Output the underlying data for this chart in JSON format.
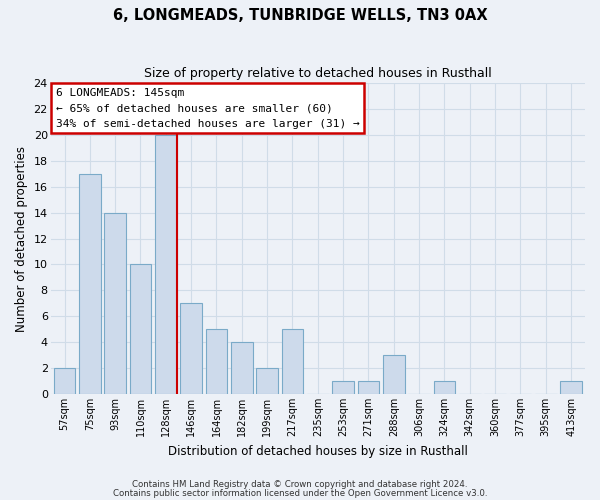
{
  "title": "6, LONGMEADS, TUNBRIDGE WELLS, TN3 0AX",
  "subtitle": "Size of property relative to detached houses in Rusthall",
  "xlabel": "Distribution of detached houses by size in Rusthall",
  "ylabel": "Number of detached properties",
  "bin_labels": [
    "57sqm",
    "75sqm",
    "93sqm",
    "110sqm",
    "128sqm",
    "146sqm",
    "164sqm",
    "182sqm",
    "199sqm",
    "217sqm",
    "235sqm",
    "253sqm",
    "271sqm",
    "288sqm",
    "306sqm",
    "324sqm",
    "342sqm",
    "360sqm",
    "377sqm",
    "395sqm",
    "413sqm"
  ],
  "bar_heights": [
    2,
    17,
    14,
    10,
    20,
    7,
    5,
    4,
    2,
    5,
    0,
    1,
    1,
    3,
    0,
    1,
    0,
    0,
    0,
    0,
    1
  ],
  "bar_color": "#cddaeb",
  "bar_edge_color": "#7aaac8",
  "marker_index": 4,
  "marker_line_color": "#cc0000",
  "ylim": [
    0,
    24
  ],
  "yticks": [
    0,
    2,
    4,
    6,
    8,
    10,
    12,
    14,
    16,
    18,
    20,
    22,
    24
  ],
  "annotation_title": "6 LONGMEADS: 145sqm",
  "annotation_line1": "← 65% of detached houses are smaller (60)",
  "annotation_line2": "34% of semi-detached houses are larger (31) →",
  "annotation_box_color": "#ffffff",
  "annotation_box_edge": "#cc0000",
  "footer1": "Contains HM Land Registry data © Crown copyright and database right 2024.",
  "footer2": "Contains public sector information licensed under the Open Government Licence v3.0.",
  "grid_color": "#d0dce8",
  "background_color": "#edf1f7"
}
